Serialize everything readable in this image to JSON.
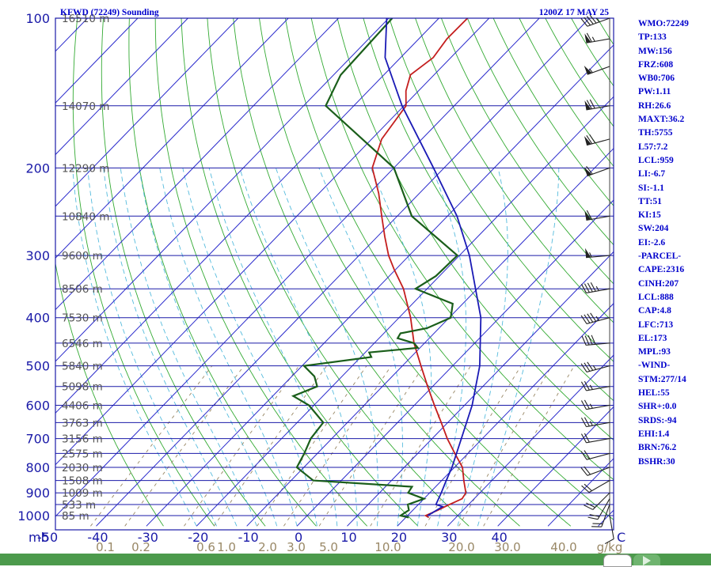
{
  "header": {
    "title": "KFWD (72249) Sounding",
    "time": "1200Z 17 MAY 25"
  },
  "colors": {
    "isobar": "#1a1aa8",
    "isotherm": "#2a2acc",
    "dry_adiabat": "#33aa33",
    "moist_adiabat": "#55bbdd",
    "mixing_ratio": "#998866",
    "temperature": "#c41e1e",
    "dewpoint": "#1a5e1a",
    "parcel": "#1a1ab5",
    "index_text": "#0000cc",
    "bottom_bar": "#4c9a4c"
  },
  "indices": [
    "WMO:72249",
    "TP:133",
    "MW:156",
    "FRZ:608",
    "WB0:706",
    "PW:1.11",
    "RH:26.6",
    "MAXT:36.2",
    "TH:5755",
    "L57:7.2",
    "LCL:959",
    "LI:-6.7",
    "SI:-1.1",
    "TT:51",
    "KI:15",
    "SW:204",
    "EI:-2.6",
    "-PARCEL-",
    "CAPE:2316",
    "CINH:207",
    "LCL:888",
    "CAP:4.8",
    "LFC:713",
    "EL:173",
    "MPL:93",
    "-WIND-",
    "STM:277/14",
    "HEL:55",
    "SHR+:0.0",
    "SRDS:-94",
    "EHI:1.4",
    "BRN:76.2",
    "BSHR:30"
  ],
  "nav_icons": [
    "nav-back-icon",
    "nav-forward-icon"
  ],
  "chart_data": {
    "type": "line",
    "title": "KFWD (72249) Sounding",
    "subtitle": "1200Z 17 MAY 25",
    "xlabel": "",
    "ylabel": "mb",
    "x_axis": {
      "unit": "C",
      "ticks": [
        -50,
        -40,
        -30,
        -20,
        -10,
        0,
        10,
        20,
        30,
        40
      ],
      "range": [
        -50,
        50
      ]
    },
    "y_axis": {
      "unit": "mb",
      "scale": "log",
      "ticks": [
        100,
        200,
        300,
        400,
        500,
        600,
        700,
        800,
        900,
        1000
      ],
      "range": [
        100,
        1050
      ]
    },
    "mixing_ratio_labels": [
      "0.1",
      "0.2",
      "0.6",
      "1.0",
      "2.0",
      "3.0",
      "5.0",
      "10.0",
      "20.0",
      "30.0",
      "40.0",
      "g/kg"
    ],
    "height_labels": [
      {
        "p": 100,
        "label": "16510 m"
      },
      {
        "p": 150,
        "label": "14070 m"
      },
      {
        "p": 200,
        "label": "12290 m"
      },
      {
        "p": 250,
        "label": "10840 m"
      },
      {
        "p": 300,
        "label": "9600 m"
      },
      {
        "p": 350,
        "label": "8506 m"
      },
      {
        "p": 400,
        "label": "7530 m"
      },
      {
        "p": 450,
        "label": "6546 m"
      },
      {
        "p": 500,
        "label": "5840 m"
      },
      {
        "p": 550,
        "label": "5098 m"
      },
      {
        "p": 600,
        "label": "4406 m"
      },
      {
        "p": 650,
        "label": "3763 m"
      },
      {
        "p": 700,
        "label": "3156 m"
      },
      {
        "p": 750,
        "label": "2575 m"
      },
      {
        "p": 800,
        "label": "2030 m"
      },
      {
        "p": 850,
        "label": "1508 m"
      },
      {
        "p": 900,
        "label": "1009 m"
      },
      {
        "p": 950,
        "label": "533 m"
      },
      {
        "p": 1000,
        "label": "85 m"
      }
    ],
    "series": [
      {
        "key": "temperature",
        "style": "temperature",
        "points": [
          [
            1009,
            24.6
          ],
          [
            1000,
            23.6
          ],
          [
            975,
            25
          ],
          [
            950,
            26.2
          ],
          [
            925,
            27.6
          ],
          [
            900,
            27.2
          ],
          [
            850,
            24.4
          ],
          [
            800,
            21.6
          ],
          [
            750,
            17.4
          ],
          [
            700,
            13
          ],
          [
            650,
            8.7
          ],
          [
            600,
            4
          ],
          [
            550,
            -1
          ],
          [
            500,
            -6.3
          ],
          [
            450,
            -12.1
          ],
          [
            400,
            -17.7
          ],
          [
            350,
            -24.7
          ],
          [
            320,
            -30.3
          ],
          [
            300,
            -34.1
          ],
          [
            275,
            -38.5
          ],
          [
            250,
            -43.1
          ],
          [
            225,
            -48.1
          ],
          [
            200,
            -54.3
          ],
          [
            175,
            -58
          ],
          [
            150,
            -59.6
          ],
          [
            140,
            -62.5
          ],
          [
            130,
            -64.7
          ],
          [
            120,
            -63.5
          ],
          [
            110,
            -64.4
          ],
          [
            100,
            -64.3
          ]
        ]
      },
      {
        "key": "dewpoint",
        "style": "dewpoint",
        "points": [
          [
            1009,
            20.6
          ],
          [
            1000,
            18.6
          ],
          [
            975,
            19.2
          ],
          [
            950,
            17.9
          ],
          [
            925,
            20
          ],
          [
            900,
            15.7
          ],
          [
            875,
            15.3
          ],
          [
            850,
            -5.6
          ],
          [
            800,
            -11.4
          ],
          [
            750,
            -12.6
          ],
          [
            700,
            -14.2
          ],
          [
            650,
            -14.8
          ],
          [
            600,
            -21
          ],
          [
            575,
            -25.9
          ],
          [
            550,
            -23
          ],
          [
            525,
            -25.5
          ],
          [
            500,
            -29.6
          ],
          [
            480,
            -17.9
          ],
          [
            470,
            -19.2
          ],
          [
            460,
            -10.4
          ],
          [
            450,
            -12.1
          ],
          [
            440,
            -16.3
          ],
          [
            430,
            -16.7
          ],
          [
            420,
            -12.4
          ],
          [
            400,
            -9.7
          ],
          [
            375,
            -12
          ],
          [
            350,
            -22.3
          ],
          [
            330,
            -20.7
          ],
          [
            300,
            -20.4
          ],
          [
            250,
            -37.1
          ],
          [
            200,
            -50
          ],
          [
            150,
            -75.6
          ],
          [
            130,
            -78.6
          ],
          [
            100,
            -79.3
          ]
        ]
      },
      {
        "key": "parcel",
        "style": "parcel",
        "points": [
          [
            1000,
            24
          ],
          [
            959,
            25.2
          ],
          [
            950,
            23.5
          ],
          [
            900,
            22.3
          ],
          [
            850,
            20.9
          ],
          [
            800,
            19.5
          ],
          [
            700,
            15.8
          ],
          [
            600,
            11.5
          ],
          [
            500,
            5.4
          ],
          [
            400,
            -3.7
          ],
          [
            300,
            -18
          ],
          [
            250,
            -28.1
          ],
          [
            200,
            -42.1
          ],
          [
            150,
            -60.4
          ],
          [
            120,
            -73.1
          ],
          [
            100,
            -80.4
          ]
        ]
      }
    ],
    "wind_barbs": [
      {
        "p": 1000,
        "dir": 170,
        "kt": 10
      },
      {
        "p": 950,
        "dir": 200,
        "kt": 20
      },
      {
        "p": 925,
        "dir": 210,
        "kt": 20
      },
      {
        "p": 900,
        "dir": 225,
        "kt": 20
      },
      {
        "p": 850,
        "dir": 240,
        "kt": 20
      },
      {
        "p": 800,
        "dir": 250,
        "kt": 20
      },
      {
        "p": 750,
        "dir": 255,
        "kt": 20
      },
      {
        "p": 700,
        "dir": 260,
        "kt": 20
      },
      {
        "p": 650,
        "dir": 260,
        "kt": 25
      },
      {
        "p": 600,
        "dir": 260,
        "kt": 25
      },
      {
        "p": 550,
        "dir": 260,
        "kt": 25
      },
      {
        "p": 500,
        "dir": 255,
        "kt": 35
      },
      {
        "p": 450,
        "dir": 265,
        "kt": 40
      },
      {
        "p": 400,
        "dir": 255,
        "kt": 45
      },
      {
        "p": 350,
        "dir": 260,
        "kt": 45
      },
      {
        "p": 300,
        "dir": 265,
        "kt": 55
      },
      {
        "p": 250,
        "dir": 260,
        "kt": 60
      },
      {
        "p": 200,
        "dir": 250,
        "kt": 60
      },
      {
        "p": 175,
        "dir": 255,
        "kt": 70
      },
      {
        "p": 150,
        "dir": 260,
        "kt": 70
      },
      {
        "p": 125,
        "dir": 250,
        "kt": 55
      },
      {
        "p": 110,
        "dir": 260,
        "kt": 65
      },
      {
        "p": 100,
        "dir": 250,
        "kt": 45
      }
    ]
  }
}
